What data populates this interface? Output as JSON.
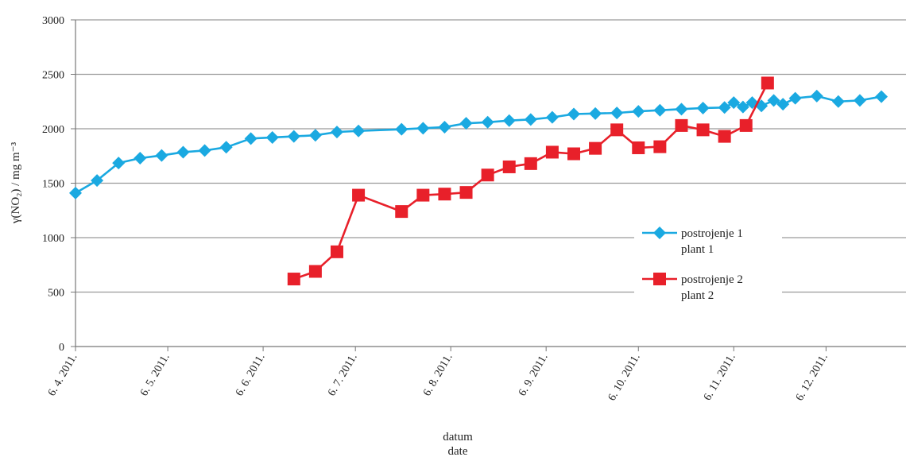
{
  "chart_data": {
    "type": "line",
    "ylabel": "γ(NO₂) / mg m⁻³",
    "xlabel_line1": "datum",
    "xlabel_line2": "date",
    "ylim": [
      0,
      3000
    ],
    "yticks": [
      0,
      500,
      1000,
      1500,
      2000,
      2500,
      3000
    ],
    "xlim": [
      "2011-04-06",
      "2012-01-01"
    ],
    "xticks": [
      {
        "date": "2011-04-06",
        "label": "6. 4. 2011."
      },
      {
        "date": "2011-05-06",
        "label": "6. 5. 2011."
      },
      {
        "date": "2011-06-06",
        "label": "6. 6. 2011."
      },
      {
        "date": "2011-07-06",
        "label": "6. 7. 2011."
      },
      {
        "date": "2011-08-06",
        "label": "6. 8. 2011."
      },
      {
        "date": "2011-09-06",
        "label": "6. 9. 2011."
      },
      {
        "date": "2011-10-06",
        "label": "6. 10. 2011."
      },
      {
        "date": "2011-11-06",
        "label": "6. 11. 2011."
      },
      {
        "date": "2011-12-06",
        "label": "6. 12. 2011."
      }
    ],
    "legend_position": "right-center",
    "series": [
      {
        "name_line1": "postrojenje 1",
        "name_line2": "plant 1",
        "color": "#1aa9e1",
        "marker": "diamond",
        "points": [
          [
            "2011-04-06",
            1410
          ],
          [
            "2011-04-13",
            1525
          ],
          [
            "2011-04-20",
            1685
          ],
          [
            "2011-04-27",
            1730
          ],
          [
            "2011-05-04",
            1755
          ],
          [
            "2011-05-11",
            1785
          ],
          [
            "2011-05-18",
            1800
          ],
          [
            "2011-05-25",
            1830
          ],
          [
            "2011-06-02",
            1910
          ],
          [
            "2011-06-09",
            1920
          ],
          [
            "2011-06-16",
            1930
          ],
          [
            "2011-06-23",
            1940
          ],
          [
            "2011-06-30",
            1970
          ],
          [
            "2011-07-07",
            1980
          ],
          [
            "2011-07-21",
            1995
          ],
          [
            "2011-07-28",
            2005
          ],
          [
            "2011-08-04",
            2015
          ],
          [
            "2011-08-11",
            2050
          ],
          [
            "2011-08-18",
            2060
          ],
          [
            "2011-08-25",
            2075
          ],
          [
            "2011-09-01",
            2085
          ],
          [
            "2011-09-08",
            2105
          ],
          [
            "2011-09-15",
            2135
          ],
          [
            "2011-09-22",
            2140
          ],
          [
            "2011-09-29",
            2145
          ],
          [
            "2011-10-06",
            2160
          ],
          [
            "2011-10-13",
            2170
          ],
          [
            "2011-10-20",
            2180
          ],
          [
            "2011-10-27",
            2190
          ],
          [
            "2011-11-03",
            2195
          ],
          [
            "2011-11-06",
            2240
          ],
          [
            "2011-11-09",
            2200
          ],
          [
            "2011-11-12",
            2240
          ],
          [
            "2011-11-15",
            2210
          ],
          [
            "2011-11-19",
            2260
          ],
          [
            "2011-11-22",
            2225
          ],
          [
            "2011-11-26",
            2280
          ],
          [
            "2011-12-03",
            2300
          ],
          [
            "2011-12-10",
            2250
          ],
          [
            "2011-12-17",
            2260
          ],
          [
            "2011-12-24",
            2295
          ]
        ]
      },
      {
        "name_line1": "postrojenje 2",
        "name_line2": "plant 2",
        "color": "#e8202a",
        "marker": "square",
        "points": [
          [
            "2011-06-16",
            620
          ],
          [
            "2011-06-23",
            690
          ],
          [
            "2011-06-30",
            870
          ],
          [
            "2011-07-07",
            1390
          ],
          [
            "2011-07-21",
            1240
          ],
          [
            "2011-07-28",
            1390
          ],
          [
            "2011-08-04",
            1400
          ],
          [
            "2011-08-11",
            1415
          ],
          [
            "2011-08-18",
            1575
          ],
          [
            "2011-08-25",
            1650
          ],
          [
            "2011-09-01",
            1680
          ],
          [
            "2011-09-08",
            1785
          ],
          [
            "2011-09-15",
            1770
          ],
          [
            "2011-09-22",
            1820
          ],
          [
            "2011-09-29",
            1990
          ],
          [
            "2011-10-06",
            1825
          ],
          [
            "2011-10-13",
            1835
          ],
          [
            "2011-10-20",
            2030
          ],
          [
            "2011-10-27",
            1990
          ],
          [
            "2011-11-03",
            1930
          ],
          [
            "2011-11-10",
            2030
          ],
          [
            "2011-11-17",
            2420
          ]
        ]
      }
    ]
  }
}
